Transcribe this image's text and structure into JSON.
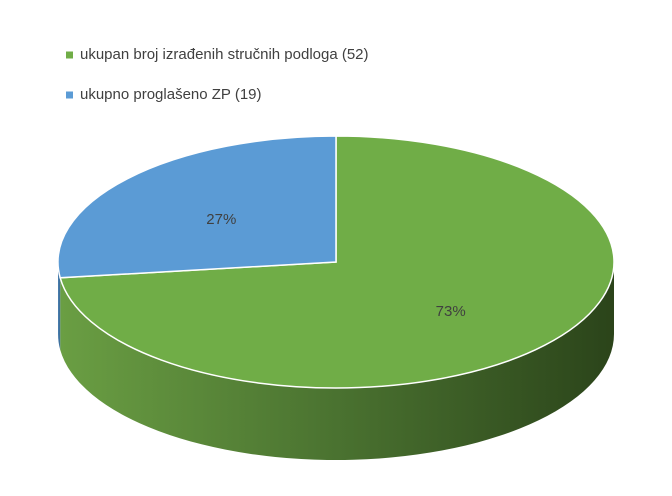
{
  "chart_data": {
    "type": "pie3d",
    "series": [
      {
        "name": "ukupan broj izrađenih stručnih podloga (52)",
        "color": "#70ad47",
        "values": [
          73
        ],
        "value_labels": [
          "73%"
        ]
      },
      {
        "name": "ukupno proglašeno ZP (19)",
        "color": "#5b9bd5",
        "values": [
          27
        ],
        "value_labels": [
          "27%"
        ]
      }
    ]
  }
}
